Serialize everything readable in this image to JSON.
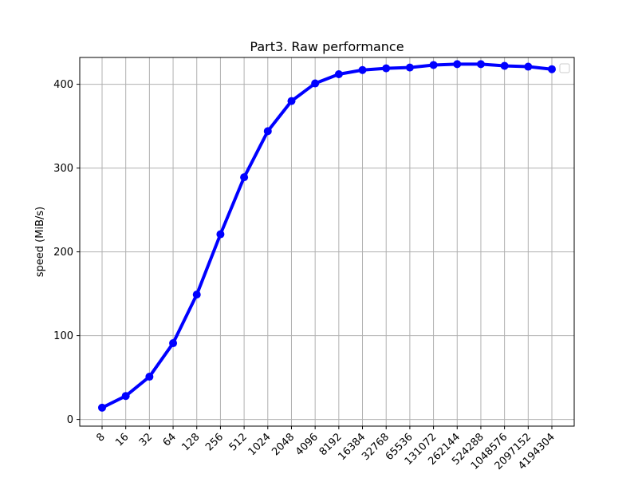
{
  "chart_data": {
    "type": "line",
    "title": "Part3. Raw performance",
    "xlabel": "",
    "ylabel": "speed (MiB/s)",
    "categories": [
      "8",
      "16",
      "32",
      "64",
      "128",
      "256",
      "512",
      "1024",
      "2048",
      "4096",
      "8192",
      "16384",
      "32768",
      "65536",
      "131072",
      "262144",
      "524288",
      "1048576",
      "2097152",
      "4194304"
    ],
    "series": [
      {
        "name": "",
        "color": "#0000ff",
        "values": [
          14,
          28,
          51,
          91,
          149,
          221,
          289,
          344,
          380,
          401,
          412,
          417,
          419,
          420,
          423,
          424,
          424,
          422,
          421,
          418
        ]
      }
    ],
    "ylim": [
      -8,
      432
    ],
    "yticks": [
      0,
      100,
      200,
      300,
      400
    ],
    "grid": true,
    "legend": {
      "placement": "top-right",
      "entries": []
    }
  }
}
